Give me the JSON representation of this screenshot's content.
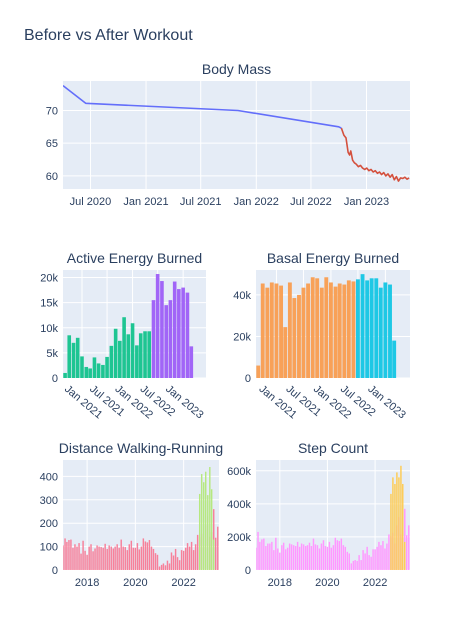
{
  "figure": {
    "title": "Before vs After Workout"
  },
  "colors": {
    "plot_bg": "#e5ecf6",
    "grid": "#ffffff",
    "text": "#2a3f5f"
  },
  "chart_data": [
    {
      "type": "line",
      "title": "Body Mass",
      "xlabel": "",
      "ylabel": "",
      "xlim": [
        "2020-04-01",
        "2023-05-25"
      ],
      "ylim": [
        58,
        74.5
      ],
      "x_ticks": [
        {
          "value": "2020-07-01",
          "label": "Jul 2020"
        },
        {
          "value": "2021-01-01",
          "label": "Jan 2021"
        },
        {
          "value": "2021-07-01",
          "label": "Jul 2021"
        },
        {
          "value": "2022-01-01",
          "label": "Jan 2022"
        },
        {
          "value": "2022-07-01",
          "label": "Jul 2022"
        },
        {
          "value": "2023-01-01",
          "label": "Jan 2023"
        }
      ],
      "y_ticks": [
        60,
        65,
        70
      ],
      "grid": true,
      "series": [
        {
          "color": "#636efa",
          "x": [
            "2020-04-01",
            "2020-06-15",
            "2021-11-01",
            "2022-10-01",
            "2022-10-10"
          ],
          "y": [
            73.8,
            71.1,
            70.0,
            67.5,
            67.3
          ]
        },
        {
          "color": "#d4503d",
          "x": [
            "2022-10-10",
            "2022-10-18",
            "2022-10-25",
            "2022-11-01",
            "2022-11-06",
            "2022-11-10",
            "2022-11-16",
            "2022-11-22",
            "2022-11-28",
            "2022-12-05",
            "2022-12-12",
            "2022-12-19",
            "2022-12-26",
            "2023-01-02",
            "2023-01-09",
            "2023-01-16",
            "2023-01-23",
            "2023-01-30",
            "2023-02-06",
            "2023-02-13",
            "2023-02-20",
            "2023-02-27",
            "2023-03-06",
            "2023-03-13",
            "2023-03-20",
            "2023-03-27",
            "2023-04-03",
            "2023-04-10",
            "2023-04-17",
            "2023-04-24",
            "2023-05-01",
            "2023-05-08",
            "2023-05-15",
            "2023-05-22"
          ],
          "y": [
            67.3,
            66.2,
            65.8,
            63.6,
            63.2,
            63.8,
            62.4,
            62.0,
            61.8,
            61.4,
            61.6,
            61.2,
            61.0,
            61.2,
            60.8,
            61.0,
            60.6,
            60.8,
            60.4,
            60.6,
            60.2,
            60.5,
            60.0,
            60.3,
            59.8,
            60.2,
            59.4,
            59.9,
            59.2,
            59.7,
            59.6,
            59.8,
            59.5,
            59.7
          ]
        }
      ]
    },
    {
      "type": "bar",
      "title": "Active Energy Burned",
      "xlabel": "",
      "ylabel": "",
      "xlim": [
        "2020-08-17",
        "2023-06-15"
      ],
      "ylim": [
        0,
        21500
      ],
      "x_ticks": [
        {
          "value": "2021-01-01",
          "label": "Jan 2021"
        },
        {
          "value": "2021-07-01",
          "label": "Jul 2021"
        },
        {
          "value": "2022-01-01",
          "label": "Jan 2022"
        },
        {
          "value": "2022-07-01",
          "label": "Jul 2022"
        },
        {
          "value": "2023-01-01",
          "label": "Jan 2023"
        }
      ],
      "y_ticks": [
        {
          "value": 0,
          "label": "0"
        },
        {
          "value": 5000,
          "label": "5k"
        },
        {
          "value": 10000,
          "label": "10k"
        },
        {
          "value": 15000,
          "label": "15k"
        },
        {
          "value": 20000,
          "label": "20k"
        }
      ],
      "bar_days": 26,
      "series": [
        {
          "color": "#1ec592",
          "x": [
            "2020-09-01",
            "2020-10-01",
            "2020-11-01",
            "2020-12-01",
            "2021-01-01",
            "2021-02-01",
            "2021-03-01",
            "2021-04-01",
            "2021-05-01",
            "2021-06-01",
            "2021-07-01",
            "2021-08-01",
            "2021-09-01",
            "2021-10-01",
            "2021-11-01",
            "2021-12-01",
            "2022-01-01",
            "2022-02-01",
            "2022-03-01",
            "2022-04-01",
            "2022-05-01"
          ],
          "values": [
            1000,
            8500,
            7000,
            8000,
            4300,
            2200,
            1900,
            4100,
            2900,
            2600,
            4200,
            6400,
            9800,
            7400,
            12100,
            8700,
            10900,
            6500,
            8900,
            9300,
            9300
          ]
        },
        {
          "color": "#a165f7",
          "x": [
            "2022-06-01",
            "2022-07-01",
            "2022-08-01",
            "2022-09-01",
            "2022-10-01",
            "2022-11-01",
            "2022-12-01",
            "2023-01-01",
            "2023-02-01",
            "2023-03-01",
            "2023-04-01"
          ],
          "values": [
            15500,
            20700,
            19300,
            14500,
            15500,
            19200,
            17700,
            18000,
            17000,
            6300,
            0
          ]
        }
      ]
    },
    {
      "type": "bar",
      "title": "Basal Energy Burned",
      "xlabel": "",
      "ylabel": "",
      "xlim": [
        "2020-08-17",
        "2023-06-15"
      ],
      "ylim": [
        0,
        52000
      ],
      "x_ticks": [
        {
          "value": "2021-01-01",
          "label": "Jan 2021"
        },
        {
          "value": "2021-07-01",
          "label": "Jul 2021"
        },
        {
          "value": "2022-01-01",
          "label": "Jan 2022"
        },
        {
          "value": "2022-07-01",
          "label": "Jul 2022"
        },
        {
          "value": "2023-01-01",
          "label": "Jan 2023"
        }
      ],
      "y_ticks": [
        {
          "value": 0,
          "label": "0"
        },
        {
          "value": 20000,
          "label": "20k"
        },
        {
          "value": 40000,
          "label": "40k"
        }
      ],
      "bar_days": 26,
      "series": [
        {
          "color": "#f8a158",
          "x": [
            "2020-09-01",
            "2020-10-01",
            "2020-11-01",
            "2020-12-01",
            "2021-01-01",
            "2021-02-01",
            "2021-03-01",
            "2021-04-01",
            "2021-05-01",
            "2021-06-01",
            "2021-07-01",
            "2021-08-01",
            "2021-09-01",
            "2021-10-01",
            "2021-11-01",
            "2021-12-01",
            "2022-01-01",
            "2022-02-01",
            "2022-03-01",
            "2022-04-01",
            "2022-05-01",
            "2022-06-01"
          ],
          "values": [
            6000,
            45500,
            43500,
            46000,
            45500,
            44500,
            24500,
            46000,
            38500,
            40000,
            43500,
            45500,
            48500,
            48000,
            43500,
            48500,
            46000,
            44000,
            45500,
            45000,
            47000,
            46500
          ]
        },
        {
          "color": "#1ec8e5",
          "x": [
            "2022-07-01",
            "2022-08-01",
            "2022-09-01",
            "2022-10-01",
            "2022-11-01",
            "2022-12-01",
            "2023-01-01",
            "2023-02-01",
            "2023-03-01"
          ],
          "values": [
            47500,
            50000,
            47000,
            48000,
            48000,
            43500,
            46000,
            45000,
            18000
          ]
        }
      ]
    },
    {
      "type": "bar",
      "title": "Distance Walking-Running",
      "xlabel": "",
      "ylabel": "",
      "xlim": [
        "2017-01-01",
        "2023-06-20"
      ],
      "ylim": [
        0,
        470
      ],
      "x_ticks": [
        {
          "value": "2018-01-01",
          "label": "2018"
        },
        {
          "value": "2020-01-01",
          "label": "2020"
        },
        {
          "value": "2022-01-01",
          "label": "2022"
        }
      ],
      "y_ticks": [
        {
          "value": 0,
          "label": "0"
        },
        {
          "value": 100,
          "label": "100"
        },
        {
          "value": 200,
          "label": "200"
        },
        {
          "value": 300,
          "label": "300"
        },
        {
          "value": 400,
          "label": "400"
        }
      ],
      "bar_days": 22,
      "series": [
        {
          "color": "#f7809a",
          "start": "2017-01-01",
          "step_months": 1,
          "values": [
            105,
            135,
            120,
            128,
            130,
            95,
            110,
            100,
            115,
            70,
            125,
            82,
            65,
            100,
            110,
            80,
            92,
            105,
            100,
            98,
            95,
            112,
            90,
            105,
            100,
            92,
            100,
            110,
            95,
            130,
            100,
            98,
            85,
            110,
            125,
            95,
            95,
            115,
            88,
            100,
            135,
            122,
            118,
            128,
            100,
            90,
            72,
            65,
            15,
            22,
            28,
            20,
            40,
            28,
            75,
            62,
            90,
            55,
            42,
            85,
            82,
            95,
            115,
            100,
            120,
            85,
            110,
            150,
            140,
            155,
            105,
            190,
            228,
            142,
            162,
            260,
            138,
            185,
            200,
            225
          ]
        },
        {
          "color": "#b6e880",
          "start": "2022-09-01",
          "step_months": 1,
          "values": [
            325,
            410,
            375,
            420,
            320,
            440,
            345,
            130
          ]
        }
      ]
    },
    {
      "type": "bar",
      "title": "Step Count",
      "xlabel": "",
      "ylabel": "",
      "xlim": [
        "2017-01-01",
        "2023-06-20"
      ],
      "ylim": [
        0,
        665000
      ],
      "x_ticks": [
        {
          "value": "2018-01-01",
          "label": "2018"
        },
        {
          "value": "2020-01-01",
          "label": "2020"
        },
        {
          "value": "2022-01-01",
          "label": "2022"
        }
      ],
      "y_ticks": [
        {
          "value": 0,
          "label": "0"
        },
        {
          "value": 200000,
          "label": "200k"
        },
        {
          "value": 400000,
          "label": "400k"
        },
        {
          "value": 600000,
          "label": "600k"
        }
      ],
      "bar_days": 22,
      "series": [
        {
          "color": "#ff97ff",
          "start": "2017-01-01",
          "step_months": 1,
          "values": [
            135000,
            230000,
            170000,
            185000,
            190000,
            145000,
            160000,
            160000,
            170000,
            120000,
            195000,
            130000,
            105000,
            150000,
            165000,
            125000,
            135000,
            160000,
            155000,
            150000,
            145000,
            170000,
            140000,
            160000,
            155000,
            145000,
            150000,
            165000,
            145000,
            190000,
            155000,
            150000,
            130000,
            160000,
            180000,
            145000,
            140000,
            170000,
            135000,
            150000,
            195000,
            180000,
            175000,
            190000,
            150000,
            140000,
            110000,
            100000,
            40000,
            55000,
            60000,
            55000,
            90000,
            60000,
            120000,
            100000,
            140000,
            90000,
            80000,
            125000,
            125000,
            140000,
            170000,
            150000,
            175000,
            130000,
            160000,
            215000,
            205000,
            225000,
            160000,
            270000,
            320000,
            215000,
            240000,
            370000,
            210000,
            270000,
            290000,
            320000
          ]
        },
        {
          "color": "#fecb52",
          "start": "2022-09-01",
          "step_months": 1,
          "values": [
            460000,
            560000,
            520000,
            590000,
            560000,
            630000,
            520000,
            170000
          ]
        }
      ]
    }
  ]
}
